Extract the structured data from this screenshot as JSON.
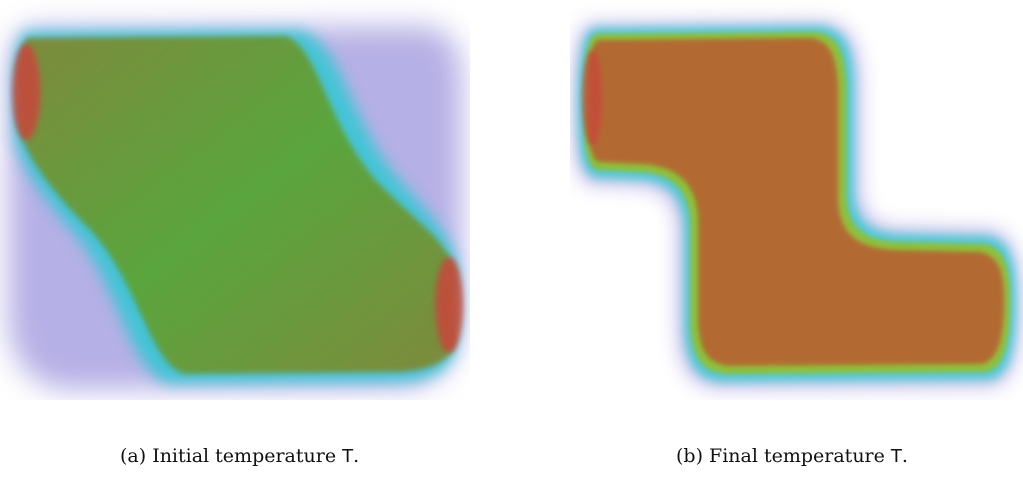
{
  "figures": [
    {
      "id": "a",
      "caption_prefix": "(a) Initial temperature ",
      "caption_symbol": "T",
      "caption_suffix": "."
    },
    {
      "id": "b",
      "caption_prefix": "(b) Final temperature ",
      "caption_symbol": "T",
      "caption_suffix": "."
    }
  ],
  "colors": {
    "hot": "#c8463b",
    "warm": "#b0682e",
    "mid_green": "#62a93a",
    "green": "#40c040",
    "cyan": "#35c8d0",
    "purple": "#6a5bc8",
    "background": "#ffffff"
  }
}
